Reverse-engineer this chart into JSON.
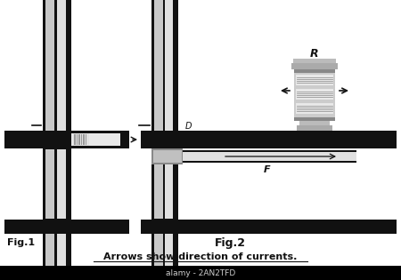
{
  "caption": "Arrows show direction of currents.",
  "fig1_label": "Fig.1",
  "fig2_label": "Fig.2",
  "bg_color": "#ffffff",
  "dark_color": "#111111",
  "gray_light": "#d0d0d0",
  "gray_med": "#aaaaaa",
  "gray_dark": "#666666",
  "watermark_text": "alamy - 2AN2TFD",
  "watermark_color": "#cccccc",
  "watermark_bg": "#000000"
}
